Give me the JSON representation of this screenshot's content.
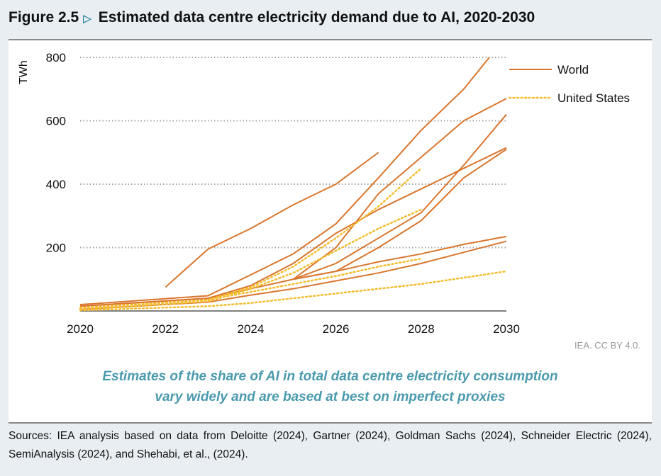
{
  "header": {
    "figure_label": "Figure 2.5",
    "marker_icon": "triangle-right-icon",
    "title": "Estimated data centre electricity demand due to AI, 2020-2030"
  },
  "credit": "IEA. CC BY 4.0.",
  "caption": [
    "Estimates of the share of AI in total data centre electricity consumption",
    "vary widely and are based at best on imperfect proxies"
  ],
  "sources": "Sources: IEA analysis based on data from Deloitte (2024), Gartner (2024), Goldman Sachs (2024), Schneider Electric (2024), SemiAnalysis (2024), and Shehabi, et al., (2024).",
  "colors": {
    "world": "#D9762E",
    "united_states": "#F5BD2E",
    "grid": "#A0A0A0",
    "caption": "#4A9AAE",
    "background": "#E9EEF3"
  },
  "chart_data": {
    "type": "line",
    "title": "Estimated data centre electricity demand due to AI, 2020-2030",
    "ylabel": "TWh",
    "xlabel": "",
    "xlim": [
      2020,
      2030
    ],
    "ylim": [
      0,
      800
    ],
    "xticks": [
      "2020",
      "2022",
      "2024",
      "2026",
      "2028",
      "2030"
    ],
    "yticks": [
      "200",
      "400",
      "600",
      "800"
    ],
    "grid": "horizontal dotted",
    "legend_position": "right",
    "legend": [
      {
        "name": "World",
        "style": "solid"
      },
      {
        "name": "United States",
        "style": "dotted"
      }
    ],
    "series": [
      {
        "group": "World",
        "points": [
          [
            2022,
            75
          ],
          [
            2023,
            195
          ],
          [
            2024,
            260
          ],
          [
            2025,
            335
          ],
          [
            2026,
            400
          ],
          [
            2027,
            500
          ]
        ]
      },
      {
        "group": "World",
        "points": [
          [
            2020,
            20
          ],
          [
            2023,
            48
          ],
          [
            2025,
            180
          ],
          [
            2026,
            275
          ],
          [
            2027,
            420
          ],
          [
            2028,
            570
          ],
          [
            2029,
            700
          ],
          [
            2029.6,
            800
          ]
        ]
      },
      {
        "group": "World",
        "points": [
          [
            2025,
            100
          ],
          [
            2026,
            200
          ],
          [
            2027,
            370
          ],
          [
            2028,
            485
          ],
          [
            2029,
            600
          ],
          [
            2030,
            670
          ]
        ]
      },
      {
        "group": "World",
        "points": [
          [
            2025,
            100
          ],
          [
            2026,
            150
          ],
          [
            2027,
            230
          ],
          [
            2028,
            310
          ],
          [
            2029,
            460
          ],
          [
            2030,
            620
          ]
        ]
      },
      {
        "group": "World",
        "points": [
          [
            2025,
            100
          ],
          [
            2026,
            125
          ],
          [
            2027,
            200
          ],
          [
            2028,
            285
          ],
          [
            2029,
            420
          ],
          [
            2030,
            510
          ]
        ]
      },
      {
        "group": "World",
        "points": [
          [
            2020,
            15
          ],
          [
            2023,
            40
          ],
          [
            2024,
            80
          ],
          [
            2025,
            150
          ],
          [
            2026,
            245
          ],
          [
            2027,
            320
          ],
          [
            2028,
            385
          ],
          [
            2029,
            450
          ],
          [
            2030,
            515
          ]
        ]
      },
      {
        "group": "World",
        "points": [
          [
            2020,
            15
          ],
          [
            2023,
            40
          ],
          [
            2025,
            100
          ],
          [
            2026,
            125
          ],
          [
            2027,
            155
          ],
          [
            2028,
            180
          ],
          [
            2029,
            210
          ],
          [
            2030,
            235
          ]
        ]
      },
      {
        "group": "World",
        "points": [
          [
            2020,
            5
          ],
          [
            2023,
            28
          ],
          [
            2024,
            50
          ],
          [
            2025,
            70
          ],
          [
            2026,
            95
          ],
          [
            2027,
            120
          ],
          [
            2028,
            150
          ],
          [
            2029,
            185
          ],
          [
            2030,
            220
          ]
        ]
      },
      {
        "group": "United States",
        "points": [
          [
            2020,
            10
          ],
          [
            2023,
            35
          ],
          [
            2024,
            75
          ],
          [
            2025,
            140
          ],
          [
            2026,
            230
          ],
          [
            2027,
            330
          ],
          [
            2028,
            450
          ]
        ]
      },
      {
        "group": "United States",
        "points": [
          [
            2020,
            5
          ],
          [
            2023,
            30
          ],
          [
            2024,
            70
          ],
          [
            2025,
            120
          ],
          [
            2026,
            190
          ],
          [
            2027,
            260
          ],
          [
            2028,
            320
          ]
        ]
      },
      {
        "group": "United States",
        "points": [
          [
            2023,
            35
          ],
          [
            2025,
            85
          ],
          [
            2026,
            110
          ],
          [
            2027,
            140
          ],
          [
            2028,
            165
          ]
        ]
      },
      {
        "group": "United States",
        "points": [
          [
            2020,
            2
          ],
          [
            2023,
            15
          ],
          [
            2024,
            25
          ],
          [
            2025,
            40
          ],
          [
            2026,
            55
          ],
          [
            2027,
            70
          ],
          [
            2028,
            85
          ],
          [
            2029,
            105
          ],
          [
            2030,
            125
          ]
        ]
      }
    ]
  }
}
